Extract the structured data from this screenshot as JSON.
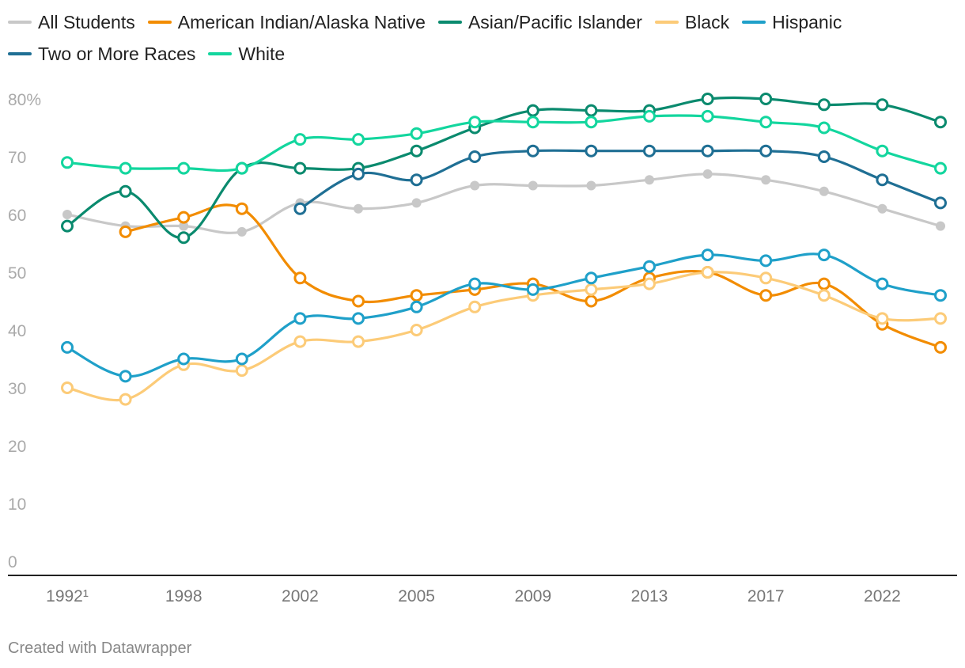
{
  "chart_data": {
    "type": "line",
    "title": "",
    "xlabel": "",
    "ylabel": "",
    "y_axis_unit_label": "80%",
    "ylim": [
      0,
      80
    ],
    "yticks": [
      0,
      10,
      20,
      30,
      40,
      50,
      60,
      70,
      80
    ],
    "ytick_labels": [
      "0",
      "10",
      "20",
      "30",
      "40",
      "50",
      "60",
      "70",
      "80%"
    ],
    "x": [
      "1992",
      "1994",
      "1998",
      "2000",
      "2002",
      "2003",
      "2005",
      "2007",
      "2009",
      "2011",
      "2013",
      "2015",
      "2017",
      "2019",
      "2022",
      "2024"
    ],
    "xtick_labels": [
      "1992¹",
      "1998",
      "2002",
      "2005",
      "2009",
      "2013",
      "2017",
      "2022"
    ],
    "xtick_positions": [
      0,
      2,
      4,
      6,
      8,
      10,
      12,
      14
    ],
    "grid": false,
    "legend_position": "top",
    "series": [
      {
        "name": "All Students",
        "color": "#c8c8c8",
        "marker": "filled",
        "values": [
          60,
          58,
          58,
          57,
          62,
          61,
          62,
          65,
          65,
          65,
          66,
          67,
          66,
          64,
          61,
          58
        ]
      },
      {
        "name": "American Indian/Alaska Native",
        "color": "#f28c00",
        "marker": "open",
        "values": [
          null,
          57,
          59.5,
          61,
          49,
          45,
          46,
          47,
          48,
          45,
          49,
          50,
          46,
          48,
          41,
          37
        ]
      },
      {
        "name": "Asian/Pacific Islander",
        "color": "#0a8a6e",
        "marker": "open",
        "values": [
          58,
          64,
          56,
          68,
          68,
          68,
          71,
          75,
          78,
          78,
          78,
          80,
          80,
          79,
          79,
          76
        ]
      },
      {
        "name": "Black",
        "color": "#fccb78",
        "marker": "open",
        "values": [
          30,
          28,
          34,
          33,
          38,
          38,
          40,
          44,
          46,
          47,
          48,
          50,
          49,
          46,
          42,
          42
        ]
      },
      {
        "name": "Hispanic",
        "color": "#1fa0c9",
        "marker": "open",
        "values": [
          37,
          32,
          35,
          35,
          42,
          42,
          44,
          48,
          47,
          49,
          51,
          53,
          52,
          53,
          48,
          46
        ]
      },
      {
        "name": "Two or More Races",
        "color": "#1f6f94",
        "marker": "open",
        "values": [
          null,
          null,
          null,
          null,
          61,
          67,
          66,
          70,
          71,
          71,
          71,
          71,
          71,
          70,
          66,
          62
        ]
      },
      {
        "name": "White",
        "color": "#13d69e",
        "marker": "open",
        "values": [
          69,
          68,
          68,
          68,
          73,
          73,
          74,
          76,
          76,
          76,
          77,
          77,
          76,
          75,
          71,
          68
        ]
      }
    ]
  },
  "footer": {
    "credit": "Created with Datawrapper"
  }
}
